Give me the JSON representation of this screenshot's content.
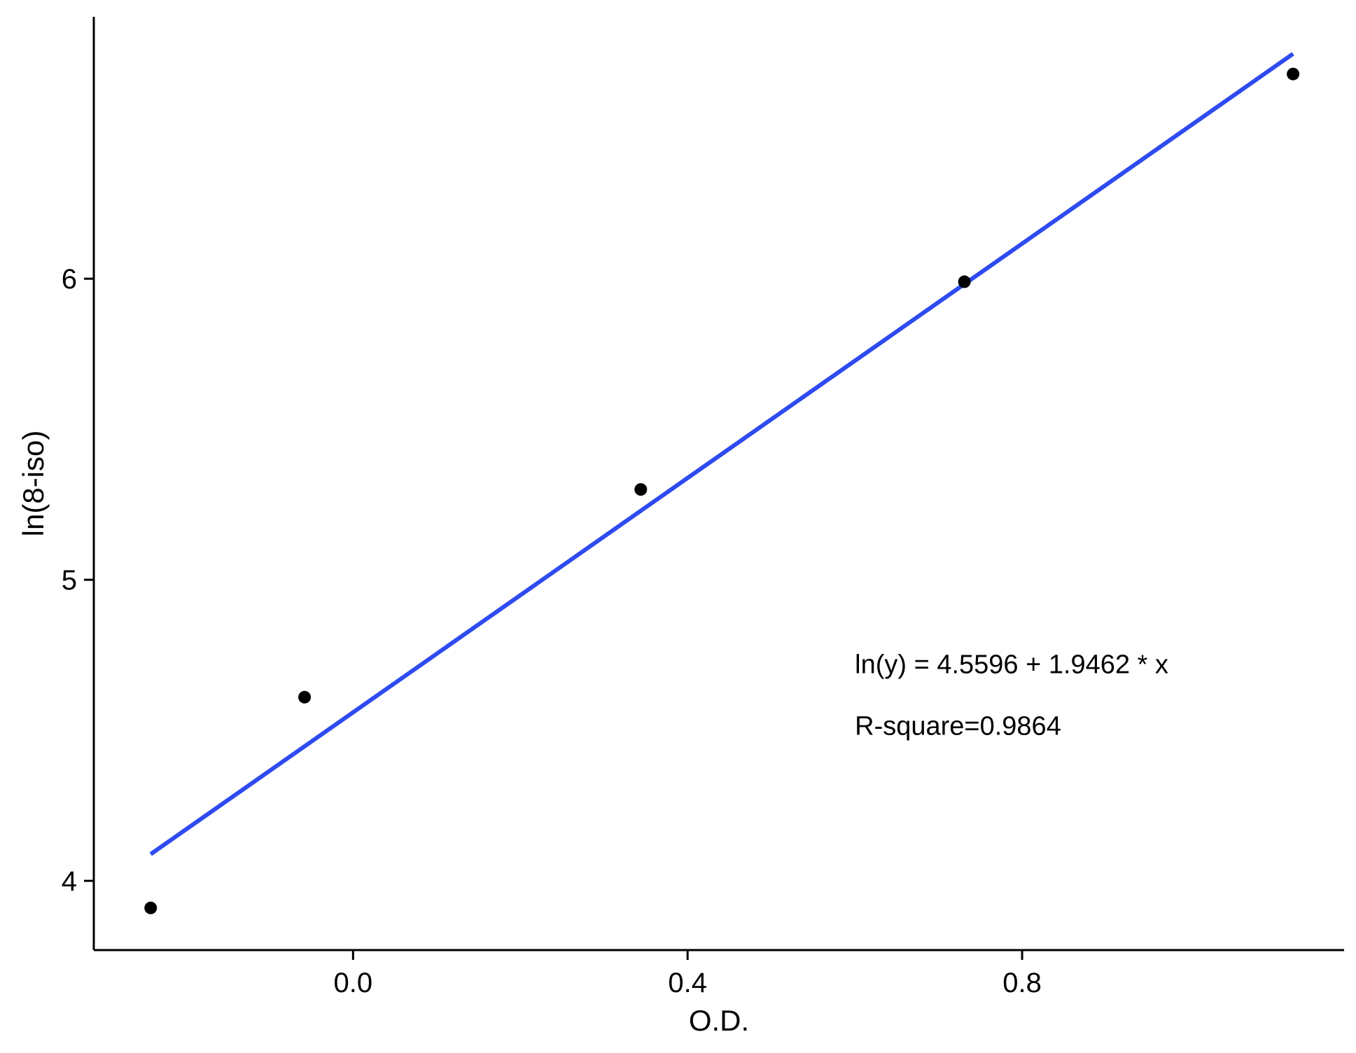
{
  "chart_data": {
    "type": "scatter",
    "title": "",
    "xlabel": "O.D.",
    "ylabel": "ln(8-iso)",
    "xlim": [
      -0.31,
      1.185
    ],
    "ylim": [
      3.77,
      6.87
    ],
    "xticks": [
      0.0,
      0.4,
      0.8
    ],
    "xtick_labels": [
      "0.0",
      "0.4",
      "0.8"
    ],
    "yticks": [
      4,
      5,
      6
    ],
    "ytick_labels": [
      "4",
      "5",
      "6"
    ],
    "grid": false,
    "points": [
      {
        "x": -0.242,
        "y": 3.91
      },
      {
        "x": -0.058,
        "y": 4.61
      },
      {
        "x": 0.344,
        "y": 5.3
      },
      {
        "x": 0.731,
        "y": 5.99
      },
      {
        "x": 1.124,
        "y": 6.68
      }
    ],
    "fit_line": {
      "intercept": 4.5596,
      "slope": 1.9462,
      "x_range": [
        -0.242,
        1.124
      ],
      "color": "#2E4BF0"
    },
    "annotations": [
      {
        "text": "ln(y) = 4.5596 + 1.9462 * x",
        "x": 0.6,
        "y": 4.69
      },
      {
        "text": "R-square=0.9864",
        "x": 0.6,
        "y": 4.485
      }
    ],
    "point_color": "#000000"
  }
}
